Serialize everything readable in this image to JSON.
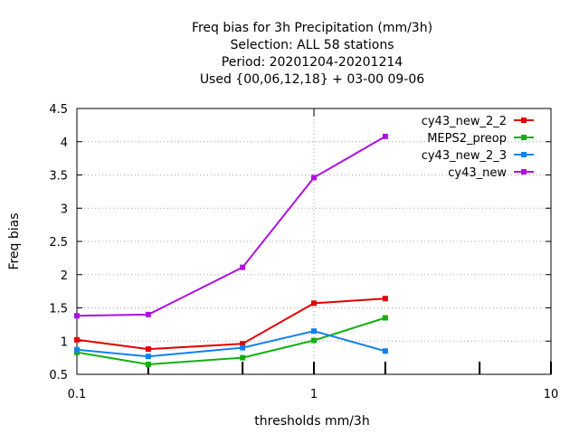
{
  "chart_data": {
    "type": "line",
    "title_lines": [
      "Freq bias  for 3h Precipitation (mm/3h)",
      "Selection: ALL      58 stations",
      "Period: 20201204-20201214",
      "Used {00,06,12,18} + 03-00 09-06"
    ],
    "xlabel": "thresholds mm/3h",
    "ylabel": "Freq bias",
    "xscale": "log",
    "xlim": [
      0.1,
      10
    ],
    "ylim": [
      0.5,
      4.5
    ],
    "x_ticks": [
      0.1,
      1,
      10
    ],
    "x_tick_labels": [
      "0.1",
      "1",
      "10"
    ],
    "y_ticks": [
      0.5,
      1,
      1.5,
      2,
      2.5,
      3,
      3.5,
      4,
      4.5
    ],
    "y_tick_labels": [
      "0.5",
      "1",
      "1.5",
      "2",
      "2.5",
      "3",
      "3.5",
      "4",
      "4.5"
    ],
    "grid": true,
    "legend_position": "top-right",
    "series": [
      {
        "name": "cy43_new_2_2",
        "color": "#e00000",
        "x": [
          0.1,
          0.2,
          0.5,
          1,
          2
        ],
        "y": [
          1.02,
          0.88,
          0.96,
          1.57,
          1.64
        ]
      },
      {
        "name": "MEPS2_preop",
        "color": "#10b010",
        "x": [
          0.1,
          0.2,
          0.5,
          1,
          2
        ],
        "y": [
          0.83,
          0.65,
          0.75,
          1.01,
          1.35
        ]
      },
      {
        "name": "cy43_new_2_3",
        "color": "#1080f0",
        "x": [
          0.1,
          0.2,
          0.5,
          1,
          2
        ],
        "y": [
          0.87,
          0.77,
          0.9,
          1.15,
          0.85
        ]
      },
      {
        "name": "cy43_new",
        "color": "#b010e0",
        "x": [
          0.1,
          0.2,
          0.5,
          1,
          2
        ],
        "y": [
          1.38,
          1.4,
          2.11,
          3.46,
          4.08
        ]
      }
    ],
    "minor_tick_marks_x": [
      0.2,
      0.5,
      1,
      2,
      5,
      10
    ]
  }
}
